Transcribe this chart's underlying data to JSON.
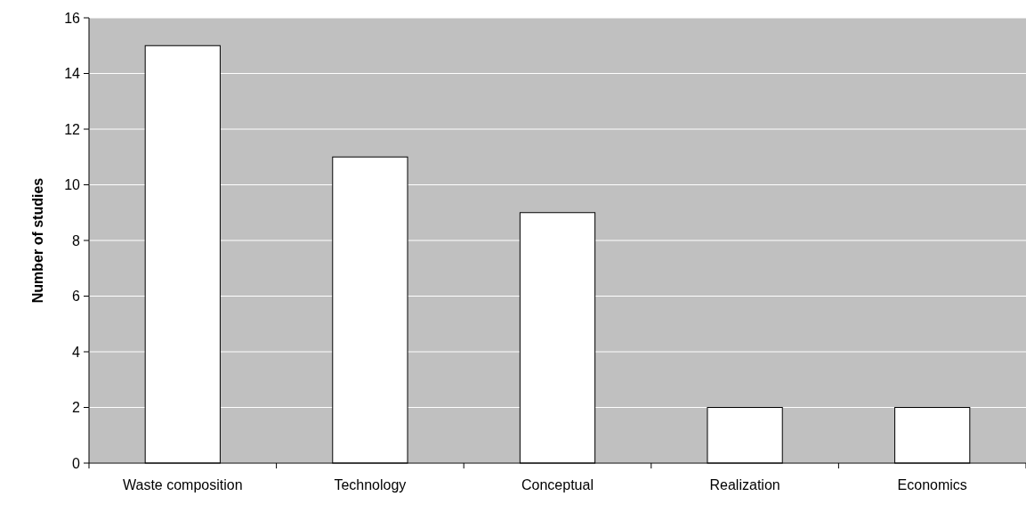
{
  "chart_data": {
    "type": "bar",
    "ylabel": "Number of studies",
    "categories": [
      "Waste composition",
      "Technology",
      "Conceptual",
      "Realization",
      "Economics"
    ],
    "values": [
      15,
      11,
      9,
      2,
      2
    ],
    "color": "#ffffff",
    "ylim": [
      0,
      16
    ],
    "yticks": [
      0,
      2,
      4,
      6,
      8,
      10,
      12,
      14,
      16
    ],
    "grid": "y"
  }
}
